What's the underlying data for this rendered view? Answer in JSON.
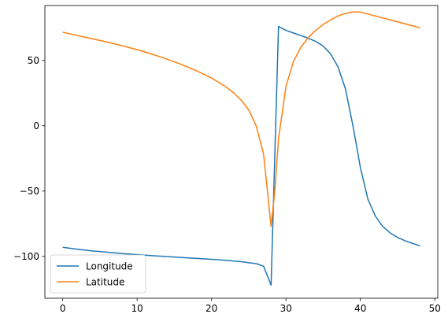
{
  "chart_data": {
    "type": "line",
    "title": "",
    "xlabel": "",
    "ylabel": "",
    "xlim": [
      -2.4,
      50.4
    ],
    "ylim": [
      -132,
      92
    ],
    "xticks": [
      0,
      10,
      20,
      30,
      40,
      50
    ],
    "yticks": [
      -100,
      -50,
      0,
      50
    ],
    "grid": false,
    "legend": {
      "position": "lower left"
    },
    "series": [
      {
        "name": "Longitude",
        "color": "#1f77b4",
        "x": [
          0,
          2,
          4,
          6,
          8,
          10,
          12,
          14,
          16,
          18,
          20,
          22,
          24,
          25,
          26,
          27,
          28,
          29,
          30,
          31,
          32,
          33,
          34,
          35,
          36,
          37,
          38,
          39,
          40,
          41,
          42,
          43,
          44,
          45,
          46,
          47,
          48
        ],
        "y": [
          -93,
          -94.5,
          -95.8,
          -96.8,
          -97.8,
          -98.6,
          -99.4,
          -100.1,
          -100.8,
          -101.5,
          -102.2,
          -103,
          -104,
          -104.8,
          -105.5,
          -107.5,
          -122,
          76,
          73,
          71,
          69,
          67,
          64.5,
          61,
          55,
          45,
          28,
          0,
          -32,
          -56,
          -69,
          -77,
          -82,
          -85.5,
          -88,
          -90,
          -92
        ]
      },
      {
        "name": "Latitude",
        "color": "#ff7f0e",
        "x": [
          0,
          2,
          4,
          6,
          8,
          10,
          12,
          14,
          16,
          18,
          20,
          22,
          23,
          24,
          25,
          26,
          27,
          28,
          28.5,
          29,
          30,
          31,
          32,
          33,
          34,
          35,
          36,
          37,
          38,
          39,
          40,
          42,
          44,
          46,
          48
        ],
        "y": [
          71.5,
          69,
          66.5,
          64,
          61.2,
          58.2,
          54.8,
          51,
          46.8,
          42,
          36.5,
          29.5,
          25,
          19.5,
          12,
          0,
          -22,
          -77,
          -50,
          -10,
          30,
          49,
          60,
          67.5,
          73,
          77.5,
          81,
          84,
          86,
          87,
          87,
          84,
          81,
          78,
          75
        ]
      }
    ]
  }
}
